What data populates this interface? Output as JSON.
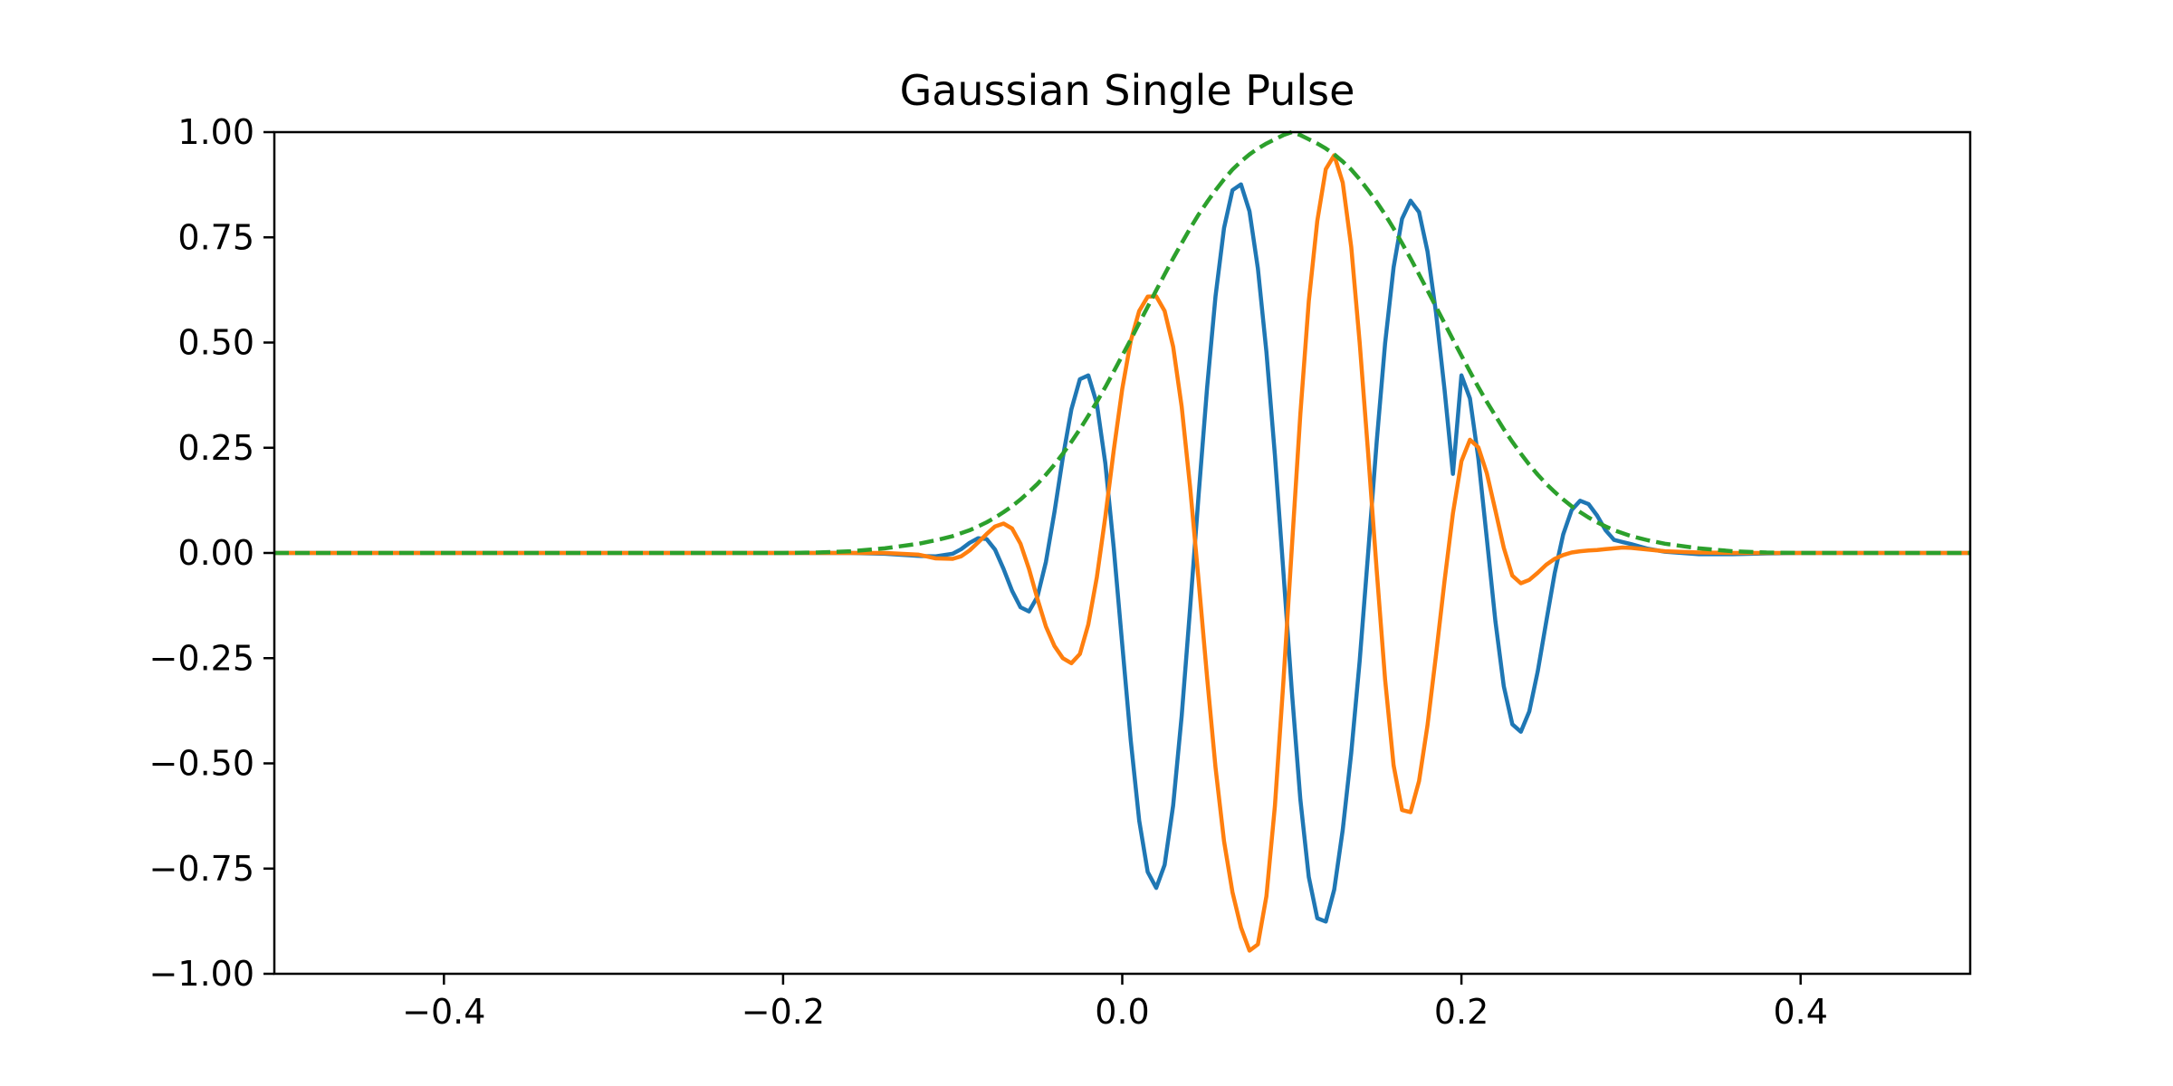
{
  "chart_data": {
    "type": "line",
    "title": "Gaussian Single Pulse",
    "xlabel": "",
    "ylabel": "",
    "xlim": [
      -0.5,
      0.5
    ],
    "ylim": [
      -1.0,
      1.0
    ],
    "grid": false,
    "x_ticks": [
      -0.4,
      -0.2,
      0.0,
      0.2,
      0.4
    ],
    "x_tick_labels": [
      "−0.4",
      "−0.2",
      "0.0",
      "0.2",
      "0.4"
    ],
    "y_ticks": [
      1.0,
      0.75,
      0.5,
      0.25,
      0.0,
      -0.25,
      -0.5,
      -0.75,
      -1.0
    ],
    "y_tick_labels": [
      "1.00",
      "0.75",
      "0.50",
      "0.25",
      "0.00",
      "−0.25",
      "−0.50",
      "−0.75",
      "−1.00"
    ],
    "x": [
      -0.5,
      -0.3,
      -0.2,
      -0.18,
      -0.16,
      -0.14,
      -0.12,
      -0.11,
      -0.1,
      -0.095,
      -0.09,
      -0.085,
      -0.08,
      -0.075,
      -0.07,
      -0.065,
      -0.06,
      -0.055,
      -0.05,
      -0.045,
      -0.04,
      -0.035,
      -0.03,
      -0.025,
      -0.02,
      -0.015,
      -0.01,
      -0.005,
      0.0,
      0.005,
      0.01,
      0.015,
      0.02,
      0.025,
      0.03,
      0.035,
      0.04,
      0.045,
      0.05,
      0.055,
      0.06,
      0.065,
      0.07,
      0.075,
      0.08,
      0.085,
      0.09,
      0.095,
      0.1,
      0.105,
      0.11,
      0.115,
      0.12,
      0.125,
      0.13,
      0.135,
      0.14,
      0.145,
      0.15,
      0.155,
      0.16,
      0.165,
      0.17,
      0.175,
      0.18,
      0.185,
      0.19,
      0.195,
      0.2,
      0.205,
      0.21,
      0.215,
      0.22,
      0.225,
      0.23,
      0.235,
      0.24,
      0.245,
      0.25,
      0.255,
      0.26,
      0.265,
      0.27,
      0.275,
      0.28,
      0.285,
      0.29,
      0.295,
      0.3,
      0.31,
      0.32,
      0.34,
      0.36,
      0.38,
      0.4,
      0.5
    ],
    "series": [
      {
        "color": "#1f77b4",
        "style": "solid",
        "values": [
          0,
          0,
          0,
          0,
          0,
          -0.002,
          -0.007,
          -0.008,
          -0.002,
          0.009,
          0.024,
          0.035,
          0.033,
          0.008,
          -0.038,
          -0.09,
          -0.129,
          -0.139,
          -0.104,
          -0.021,
          0.097,
          0.227,
          0.341,
          0.413,
          0.422,
          0.355,
          0.213,
          0.012,
          -0.218,
          -0.446,
          -0.636,
          -0.758,
          -0.796,
          -0.741,
          -0.6,
          -0.388,
          -0.132,
          0.137,
          0.393,
          0.61,
          0.772,
          0.862,
          0.876,
          0.812,
          0.676,
          0.478,
          0.232,
          -0.043,
          -0.329,
          -0.586,
          -0.77,
          -0.868,
          -0.876,
          -0.8,
          -0.658,
          -0.475,
          -0.257,
          0.001,
          0.264,
          0.498,
          0.679,
          0.794,
          0.837,
          0.81,
          0.717,
          0.571,
          0.389,
          0.188,
          0.422,
          0.367,
          0.224,
          0.033,
          -0.162,
          -0.317,
          -0.407,
          -0.425,
          -0.377,
          -0.281,
          -0.163,
          -0.048,
          0.044,
          0.102,
          0.124,
          0.116,
          0.089,
          0.054,
          0.031,
          0.026,
          0.021,
          0.01,
          0.003,
          -0.003,
          -0.003,
          -0.001,
          0,
          0
        ]
      },
      {
        "color": "#ff7f0e",
        "style": "solid",
        "values": [
          0,
          0,
          0,
          0,
          0,
          0,
          -0.004,
          -0.013,
          -0.014,
          -0.008,
          0.006,
          0.025,
          0.045,
          0.063,
          0.07,
          0.058,
          0.022,
          -0.038,
          -0.109,
          -0.175,
          -0.221,
          -0.25,
          -0.262,
          -0.24,
          -0.17,
          -0.058,
          0.086,
          0.244,
          0.39,
          0.504,
          0.575,
          0.609,
          0.61,
          0.575,
          0.49,
          0.348,
          0.157,
          -0.065,
          -0.296,
          -0.51,
          -0.685,
          -0.806,
          -0.89,
          -0.945,
          -0.93,
          -0.816,
          -0.601,
          -0.308,
          0.013,
          0.33,
          0.598,
          0.789,
          0.912,
          0.945,
          0.88,
          0.727,
          0.5,
          0.236,
          -0.041,
          -0.301,
          -0.505,
          -0.611,
          -0.616,
          -0.542,
          -0.41,
          -0.243,
          -0.067,
          0.094,
          0.218,
          0.269,
          0.251,
          0.189,
          0.101,
          0.012,
          -0.054,
          -0.072,
          -0.064,
          -0.047,
          -0.028,
          -0.014,
          -0.005,
          0.001,
          0.004,
          0.006,
          0.007,
          0.009,
          0.011,
          0.013,
          0.012,
          0.008,
          0.004,
          0.001,
          0,
          0,
          0,
          0
        ]
      },
      {
        "color": "#2ca02c",
        "style": "dashed",
        "values": [
          0,
          0,
          0,
          0.001,
          0.004,
          0.011,
          0.022,
          0.03,
          0.04,
          0.047,
          0.054,
          0.063,
          0.073,
          0.084,
          0.097,
          0.111,
          0.127,
          0.145,
          0.164,
          0.186,
          0.21,
          0.236,
          0.264,
          0.294,
          0.326,
          0.359,
          0.394,
          0.431,
          0.469,
          0.507,
          0.546,
          0.585,
          0.624,
          0.662,
          0.7,
          0.736,
          0.771,
          0.804,
          0.834,
          0.862,
          0.888,
          0.911,
          0.93,
          0.947,
          0.961,
          0.973,
          0.983,
          0.993,
          1.0,
          0.993,
          0.983,
          0.973,
          0.961,
          0.947,
          0.93,
          0.911,
          0.888,
          0.862,
          0.834,
          0.804,
          0.771,
          0.736,
          0.7,
          0.662,
          0.624,
          0.585,
          0.546,
          0.507,
          0.469,
          0.431,
          0.394,
          0.359,
          0.326,
          0.294,
          0.264,
          0.236,
          0.21,
          0.186,
          0.164,
          0.145,
          0.127,
          0.111,
          0.097,
          0.084,
          0.073,
          0.063,
          0.054,
          0.047,
          0.04,
          0.03,
          0.022,
          0.011,
          0.004,
          0.001,
          0,
          0
        ]
      }
    ]
  }
}
